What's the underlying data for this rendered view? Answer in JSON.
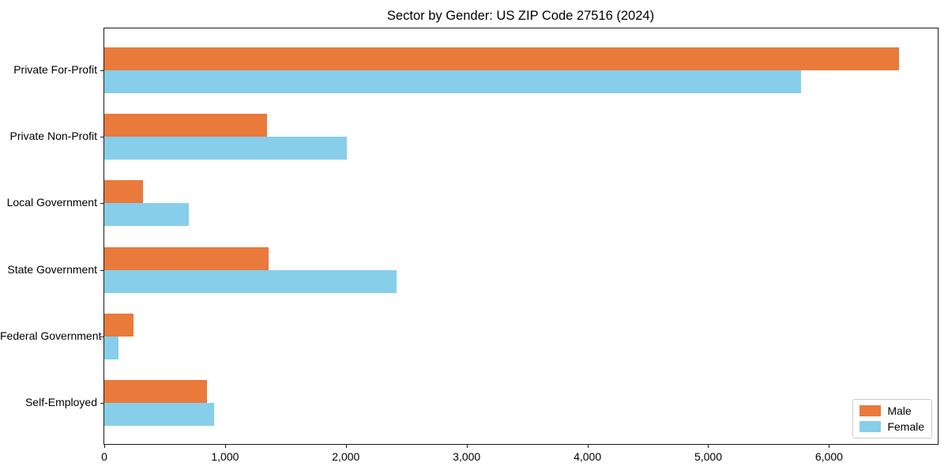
{
  "chart_data": {
    "type": "bar",
    "orientation": "horizontal",
    "title": "Sector by Gender: US ZIP Code 27516 (2024)",
    "categories": [
      "Private For-Profit",
      "Private Non-Profit",
      "Local Government",
      "State Government",
      "Federal Government",
      "Self-Employed"
    ],
    "series": [
      {
        "name": "Male",
        "color": "#E97A3C",
        "values": [
          6580,
          1350,
          320,
          1360,
          240,
          850
        ]
      },
      {
        "name": "Female",
        "color": "#87CEEB",
        "values": [
          5770,
          2010,
          700,
          2420,
          120,
          910
        ]
      }
    ],
    "xlim": [
      0,
      6900
    ],
    "xticks": {
      "values": [
        0,
        1000,
        2000,
        3000,
        4000,
        5000,
        6000
      ],
      "labels": [
        "0",
        "1,000",
        "2,000",
        "3,000",
        "4,000",
        "5,000",
        "6,000"
      ]
    },
    "grid": false,
    "legend_position": "lower right"
  },
  "colors": {
    "axis": "#1a1a1a",
    "legend_border": "#cccccc",
    "background": "#ffffff"
  }
}
